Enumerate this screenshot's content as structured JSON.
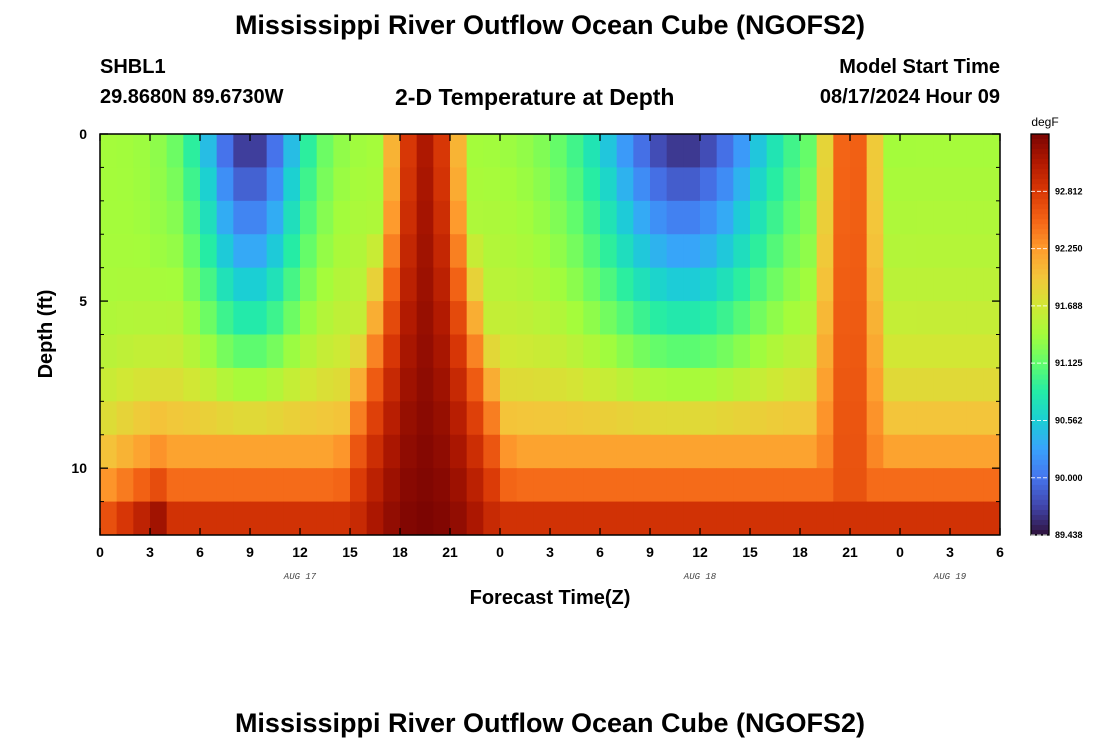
{
  "header": {
    "title": "Mississippi River Outflow Ocean Cube (NGOFS2)",
    "station": "SHBL1",
    "coords": "29.8680N  89.6730W",
    "subtitle": "2-D Temperature at Depth",
    "model_start_label": "Model Start Time",
    "model_start_value": "08/17/2024 Hour 09"
  },
  "footer": {
    "title": "Mississippi River Outflow Ocean Cube (NGOFS2)"
  },
  "chart_data": {
    "type": "heatmap",
    "title": "2-D Temperature at Depth",
    "xlabel": "Forecast Time(Z)",
    "ylabel": "Depth (ft)",
    "x_hours": [
      0,
      54
    ],
    "xlim": [
      0,
      54
    ],
    "ylim": [
      0,
      12
    ],
    "y_inverted": true,
    "x_tick_labels": [
      "0",
      "3",
      "6",
      "9",
      "12",
      "15",
      "18",
      "21",
      "0",
      "3",
      "6",
      "9",
      "12",
      "15",
      "18",
      "21",
      "0",
      "3",
      "6"
    ],
    "y_ticks": [
      0,
      5,
      10
    ],
    "y_tick_labels": [
      "0",
      "5",
      "10"
    ],
    "date_labels": [
      {
        "label": "AUG 17",
        "hour": 12
      },
      {
        "label": "AUG 18",
        "hour": 36
      },
      {
        "label": "AUG 19",
        "hour": 51
      }
    ],
    "depth_levels_ft": [
      0.5,
      1.5,
      2.5,
      3.5,
      4.5,
      5.5,
      6.5,
      7.5,
      8.5,
      9.5,
      10.5,
      11.5
    ],
    "hot_centers_hours": [
      19.5,
      45
    ],
    "hot_spread_hours": [
      3.5,
      3.0
    ],
    "colorbar": {
      "unit": "degF",
      "min": 89.438,
      "max": 93.375,
      "ticks": [
        "92.812",
        "92.250",
        "91.688",
        "91.125",
        "90.562",
        "90.000",
        "89.438"
      ],
      "colors": [
        "#30123b",
        "#4145ab",
        "#4675ed",
        "#39a2fc",
        "#1bcfd4",
        "#24eca6",
        "#61fc6c",
        "#a4fc3b",
        "#d1e834",
        "#f3c63a",
        "#fe9b2d",
        "#f36315",
        "#d93806",
        "#b11901",
        "#7a0402"
      ]
    }
  }
}
